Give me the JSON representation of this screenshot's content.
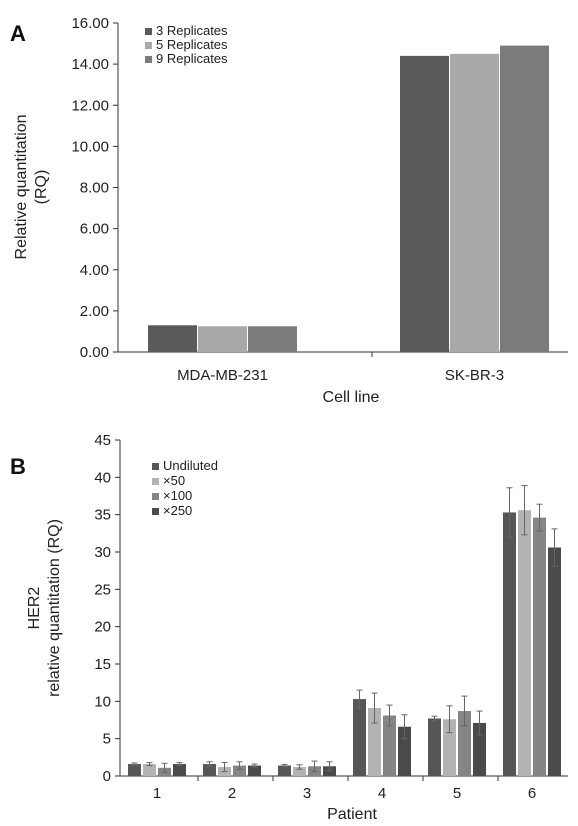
{
  "chart_data": [
    {
      "panel": "A",
      "type": "bar",
      "categories": [
        "MDA-MB-231",
        "SK-BR-3"
      ],
      "series": [
        {
          "name": "3 Replicates",
          "color": "#5a5a5a",
          "values": [
            1.3,
            14.4
          ]
        },
        {
          "name": "5 Replicates",
          "color": "#a9a9a9",
          "values": [
            1.25,
            14.5
          ]
        },
        {
          "name": "9 Replicates",
          "color": "#7b7b7b",
          "values": [
            1.25,
            14.9
          ]
        }
      ],
      "xlabel": "Cell line",
      "ylabel_lines": [
        "Relative quantitation",
        "(RQ)"
      ],
      "ylim": [
        0,
        16
      ],
      "yticks": [
        "0.00",
        "2.00",
        "4.00",
        "6.00",
        "8.00",
        "10.00",
        "12.00",
        "14.00",
        "16.00"
      ],
      "legend_position": "top-left",
      "grid": false
    },
    {
      "panel": "B",
      "type": "bar",
      "categories": [
        "1",
        "2",
        "3",
        "4",
        "5",
        "6"
      ],
      "series": [
        {
          "name": "Undiluted",
          "color": "#565656",
          "values": [
            1.6,
            1.6,
            1.4,
            10.3,
            7.7,
            35.3
          ],
          "errors": [
            0.15,
            0.3,
            0.15,
            1.2,
            0.3,
            3.3
          ]
        },
        {
          "name": "×50",
          "color": "#b3b3b3",
          "values": [
            1.6,
            1.2,
            1.2,
            9.1,
            7.6,
            35.6
          ],
          "errors": [
            0.2,
            0.6,
            0.3,
            2.0,
            1.8,
            3.3
          ]
        },
        {
          "name": "×100",
          "color": "#858585",
          "values": [
            1.1,
            1.4,
            1.3,
            8.1,
            8.7,
            34.6
          ],
          "errors": [
            0.6,
            0.5,
            0.7,
            1.4,
            2.0,
            1.8
          ]
        },
        {
          "name": "×250",
          "color": "#4a4a4a",
          "values": [
            1.6,
            1.4,
            1.3,
            6.6,
            7.1,
            30.6
          ],
          "errors": [
            0.2,
            0.2,
            0.6,
            1.6,
            1.6,
            2.5
          ]
        }
      ],
      "xlabel": "Patient",
      "ylabel_lines": [
        "HER2",
        "relative quantitation (RQ)"
      ],
      "ylim": [
        0,
        45
      ],
      "yticks": [
        "0",
        "5",
        "10",
        "15",
        "20",
        "25",
        "30",
        "35",
        "40",
        "45"
      ],
      "legend_position": "top-left",
      "grid": false
    }
  ]
}
